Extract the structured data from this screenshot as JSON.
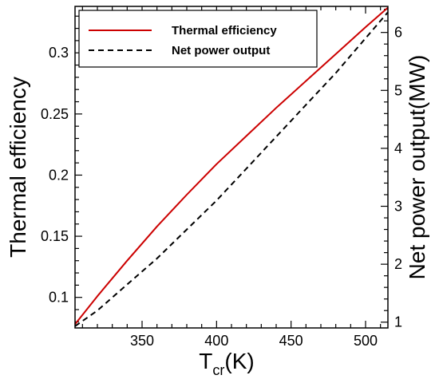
{
  "chart_data": {
    "type": "line",
    "title": "",
    "xlabel_main": "T",
    "xlabel_sub": "cr",
    "xlabel_unit": "(K)",
    "ylabel_left": "Thermal efficiency",
    "ylabel_right": "Net power output(MW)",
    "xlim": [
      305,
      515
    ],
    "ylim_left": [
      0.075,
      0.338
    ],
    "ylim_right": [
      0.9,
      6.45
    ],
    "x_ticks": [
      350,
      400,
      450,
      500
    ],
    "x_tick_labels": [
      "350",
      "400",
      "450",
      "500"
    ],
    "y_left_ticks": [
      0.1,
      0.15,
      0.2,
      0.25,
      0.3
    ],
    "y_left_tick_labels": [
      "0.1",
      "0.15",
      "0.2",
      "0.25",
      "0.3"
    ],
    "y_right_ticks": [
      1,
      2,
      3,
      4,
      5,
      6
    ],
    "y_right_tick_labels": [
      "1",
      "2",
      "3",
      "4",
      "5",
      "6"
    ],
    "legend_position": "top-left",
    "grid": false,
    "series": [
      {
        "name": "Thermal efficiency",
        "axis": "left",
        "style": "solid",
        "color": "#cc0000",
        "x": [
          305,
          320,
          340,
          360,
          380,
          400,
          420,
          440,
          460,
          480,
          500,
          515
        ],
        "y": [
          0.078,
          0.101,
          0.13,
          0.158,
          0.184,
          0.209,
          0.232,
          0.255,
          0.277,
          0.299,
          0.321,
          0.337
        ]
      },
      {
        "name": "Net power output",
        "axis": "right",
        "style": "dashed",
        "color": "#000000",
        "x": [
          305,
          320,
          340,
          360,
          380,
          400,
          420,
          440,
          460,
          480,
          500,
          515
        ],
        "y": [
          0.93,
          1.2,
          1.65,
          2.1,
          2.6,
          3.1,
          3.65,
          4.2,
          4.75,
          5.3,
          5.9,
          6.35
        ]
      }
    ]
  }
}
